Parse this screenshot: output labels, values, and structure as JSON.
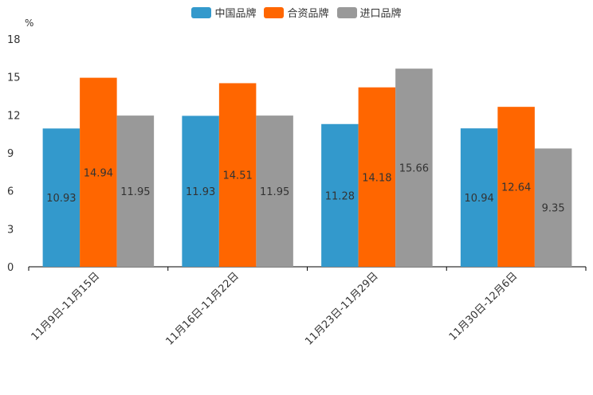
{
  "chart_data": {
    "type": "bar",
    "title": "",
    "unit_label": "%",
    "xlabel": "",
    "ylabel": "%",
    "ylim": [
      0,
      18
    ],
    "yticks": [
      0,
      3,
      6,
      9,
      12,
      15,
      18
    ],
    "grid": false,
    "legend_position": "top",
    "categories": [
      "11月9日-11月15日",
      "11月16日-11月22日",
      "11月23日-11月29日",
      "11月30日-12月6日"
    ],
    "series": [
      {
        "name": "中国品牌",
        "color": "#3399cc",
        "values": [
          10.93,
          11.93,
          11.28,
          10.94
        ]
      },
      {
        "name": "合资品牌",
        "color": "#ff6600",
        "values": [
          14.94,
          14.51,
          14.18,
          12.64
        ]
      },
      {
        "name": "进口品牌",
        "color": "#999999",
        "values": [
          11.95,
          11.95,
          15.66,
          9.35
        ]
      }
    ]
  }
}
